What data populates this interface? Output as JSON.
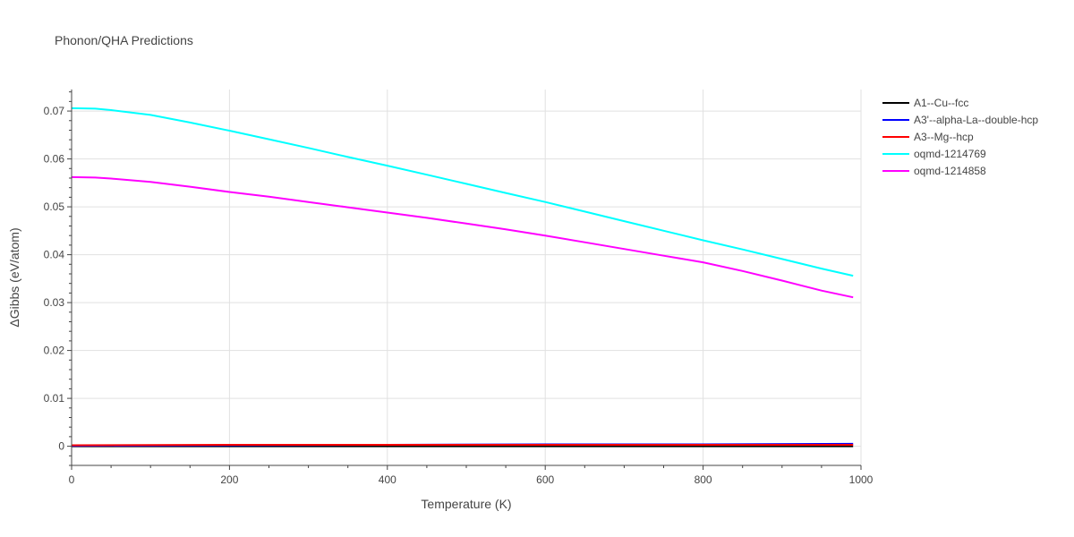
{
  "chart_data": {
    "type": "line",
    "title": "Phonon/QHA Predictions",
    "xlabel": "Temperature (K)",
    "ylabel": "ΔGibbs (eV/atom)",
    "xlim": [
      0,
      1000
    ],
    "ylim": [
      -0.004,
      0.0745
    ],
    "x_ticks": [
      0,
      200,
      400,
      600,
      800,
      1000
    ],
    "x_tick_labels": [
      "0",
      "200",
      "400",
      "600",
      "800",
      "1000"
    ],
    "y_ticks": [
      0,
      0.01,
      0.02,
      0.03,
      0.04,
      0.05,
      0.06,
      0.07
    ],
    "y_tick_labels": [
      "0",
      "0.01",
      "0.02",
      "0.03",
      "0.04",
      "0.05",
      "0.06",
      "0.07"
    ],
    "grid": true,
    "legend_position": "top-right outside",
    "series": [
      {
        "name": "A1--Cu--fcc",
        "color": "#000000",
        "x": [
          0,
          990
        ],
        "y": [
          0,
          0
        ]
      },
      {
        "name": "A3'--alpha-La--double-hcp",
        "color": "#0000ff",
        "x": [
          0,
          200,
          400,
          600,
          800,
          990
        ],
        "y": [
          0.0001,
          0.0002,
          0.0003,
          0.0004,
          0.0004,
          0.0005
        ]
      },
      {
        "name": "A3--Mg--hcp",
        "color": "#ff0000",
        "x": [
          0,
          200,
          400,
          600,
          800,
          990
        ],
        "y": [
          0.0002,
          0.0003,
          0.0003,
          0.0003,
          0.0003,
          0.0003
        ]
      },
      {
        "name": "oqmd-1214769",
        "color": "#00ffff",
        "x": [
          0,
          30,
          50,
          100,
          150,
          200,
          250,
          300,
          350,
          400,
          450,
          500,
          550,
          600,
          650,
          700,
          750,
          800,
          850,
          900,
          950,
          990
        ],
        "y": [
          0.0706,
          0.0705,
          0.0702,
          0.0692,
          0.0676,
          0.0659,
          0.0641,
          0.0623,
          0.0604,
          0.0586,
          0.0567,
          0.0548,
          0.0529,
          0.051,
          0.049,
          0.047,
          0.045,
          0.043,
          0.0411,
          0.0391,
          0.0371,
          0.0356
        ]
      },
      {
        "name": "oqmd-1214858",
        "color": "#ff00ff",
        "x": [
          0,
          30,
          50,
          100,
          150,
          200,
          250,
          300,
          350,
          400,
          450,
          500,
          550,
          600,
          650,
          700,
          750,
          800,
          850,
          900,
          950,
          990
        ],
        "y": [
          0.0562,
          0.0561,
          0.0559,
          0.0552,
          0.0542,
          0.0531,
          0.0521,
          0.051,
          0.0499,
          0.0488,
          0.0477,
          0.0465,
          0.0453,
          0.044,
          0.0426,
          0.0412,
          0.0398,
          0.0384,
          0.0366,
          0.0346,
          0.0325,
          0.0311
        ]
      }
    ]
  }
}
